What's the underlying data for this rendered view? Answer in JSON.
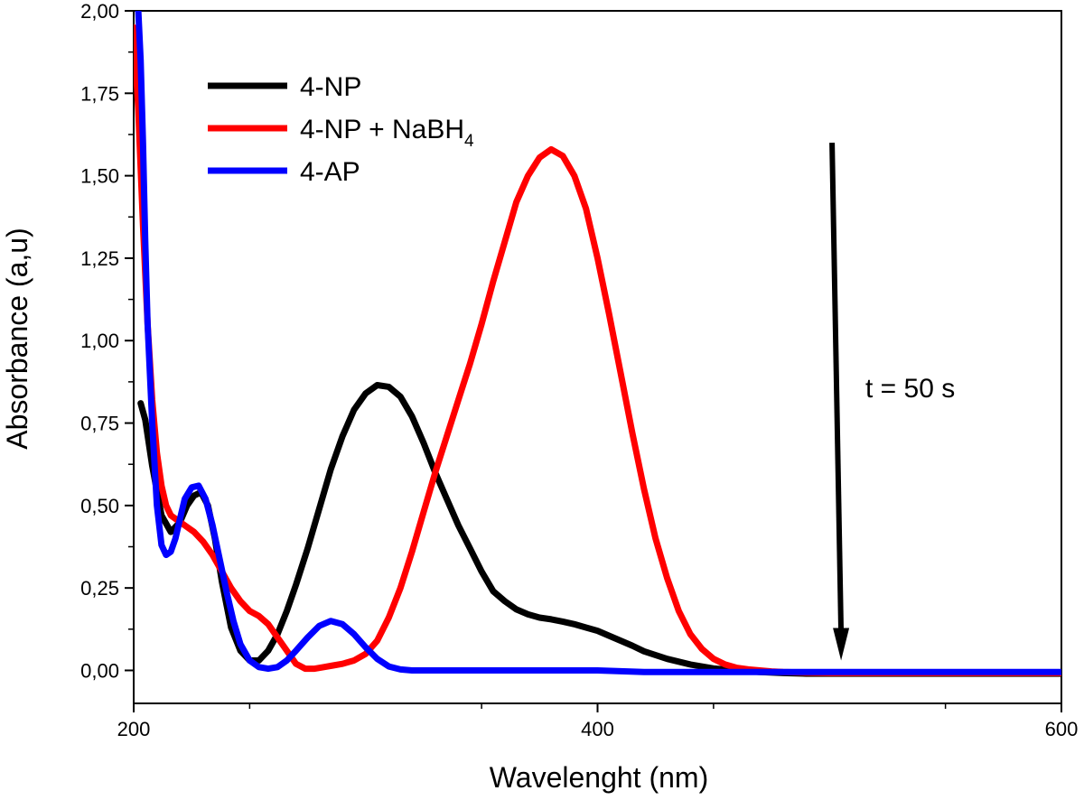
{
  "chart_data": {
    "type": "line",
    "title": "",
    "xlabel": "Wavelenght (nm)",
    "ylabel": "Absorbance (a,u)",
    "xlim": [
      200,
      600
    ],
    "ylim": [
      -0.1,
      2.0
    ],
    "x_ticks": [
      200,
      400,
      600
    ],
    "x_tick_labels": [
      "200",
      "400",
      "600"
    ],
    "y_ticks": [
      0,
      0.25,
      0.5,
      0.75,
      1.0,
      1.25,
      1.5,
      1.75,
      2.0
    ],
    "y_tick_labels": [
      "0,00",
      "0,25",
      "0,50",
      "0,75",
      "1,00",
      "1,25",
      "1,50",
      "1,75",
      "2,00"
    ],
    "grid": false,
    "legend_position": "top-left",
    "series": [
      {
        "name": "4-NP",
        "color": "#000000",
        "x": [
          203,
          205,
          208,
          212,
          216,
          220,
          223,
          226,
          229,
          232,
          235,
          238,
          242,
          246,
          250,
          254,
          258,
          262,
          266,
          270,
          275,
          280,
          285,
          290,
          295,
          300,
          305,
          310,
          315,
          320,
          325,
          330,
          335,
          340,
          345,
          350,
          355,
          360,
          365,
          370,
          375,
          380,
          385,
          390,
          395,
          400,
          405,
          410,
          415,
          420,
          430,
          440,
          450,
          460,
          470,
          480,
          490,
          500,
          520,
          550,
          580,
          600
        ],
        "values": [
          0.81,
          0.76,
          0.62,
          0.47,
          0.42,
          0.45,
          0.5,
          0.53,
          0.54,
          0.5,
          0.4,
          0.27,
          0.13,
          0.06,
          0.03,
          0.03,
          0.06,
          0.11,
          0.18,
          0.26,
          0.37,
          0.49,
          0.61,
          0.71,
          0.79,
          0.84,
          0.865,
          0.86,
          0.83,
          0.77,
          0.69,
          0.6,
          0.52,
          0.44,
          0.37,
          0.3,
          0.24,
          0.21,
          0.185,
          0.17,
          0.16,
          0.155,
          0.148,
          0.14,
          0.13,
          0.12,
          0.105,
          0.09,
          0.075,
          0.058,
          0.035,
          0.018,
          0.006,
          0.0,
          -0.005,
          -0.008,
          -0.01,
          -0.01,
          -0.01,
          -0.01,
          -0.01,
          -0.01
        ]
      },
      {
        "name": "4-NP + NaBH4",
        "color": "#ff0000",
        "x": [
          200,
          202,
          204,
          206,
          208,
          210,
          212,
          214,
          216,
          218,
          222,
          226,
          230,
          234,
          238,
          242,
          246,
          250,
          254,
          258,
          262,
          266,
          270,
          274,
          278,
          282,
          286,
          290,
          295,
          300,
          305,
          310,
          315,
          320,
          325,
          330,
          335,
          340,
          345,
          350,
          355,
          360,
          365,
          370,
          375,
          380,
          385,
          390,
          395,
          400,
          405,
          410,
          415,
          420,
          425,
          430,
          435,
          440,
          445,
          450,
          455,
          460,
          465,
          470,
          475,
          480,
          490,
          500,
          520,
          550,
          580,
          600
        ],
        "values": [
          1.95,
          1.7,
          1.35,
          1.05,
          0.82,
          0.66,
          0.56,
          0.5,
          0.47,
          0.46,
          0.44,
          0.42,
          0.39,
          0.35,
          0.3,
          0.25,
          0.21,
          0.18,
          0.165,
          0.14,
          0.1,
          0.06,
          0.02,
          0.005,
          0.005,
          0.01,
          0.015,
          0.02,
          0.03,
          0.05,
          0.09,
          0.16,
          0.25,
          0.36,
          0.48,
          0.6,
          0.71,
          0.82,
          0.93,
          1.05,
          1.18,
          1.3,
          1.42,
          1.5,
          1.555,
          1.58,
          1.56,
          1.5,
          1.4,
          1.25,
          1.08,
          0.9,
          0.72,
          0.55,
          0.4,
          0.28,
          0.18,
          0.11,
          0.065,
          0.035,
          0.018,
          0.008,
          0.003,
          0.0,
          -0.003,
          -0.005,
          -0.007,
          -0.008,
          -0.008,
          -0.008,
          -0.008,
          -0.008
        ]
      },
      {
        "name": "4-AP",
        "color": "#0000ff",
        "x": [
          202,
          203,
          204,
          205,
          206,
          208,
          210,
          212,
          214,
          216,
          218,
          220,
          222,
          225,
          228,
          231,
          234,
          237,
          240,
          243,
          246,
          250,
          254,
          258,
          262,
          266,
          270,
          275,
          280,
          285,
          290,
          295,
          300,
          305,
          310,
          315,
          320,
          325,
          330,
          340,
          350,
          360,
          370,
          380,
          400,
          420,
          450,
          500,
          550,
          600
        ],
        "values": [
          2.0,
          1.85,
          1.6,
          1.3,
          1.05,
          0.75,
          0.5,
          0.38,
          0.35,
          0.36,
          0.4,
          0.46,
          0.52,
          0.555,
          0.56,
          0.52,
          0.44,
          0.34,
          0.24,
          0.15,
          0.08,
          0.03,
          0.01,
          0.005,
          0.01,
          0.03,
          0.06,
          0.1,
          0.135,
          0.15,
          0.14,
          0.11,
          0.07,
          0.035,
          0.012,
          0.003,
          0.0,
          0.0,
          0.0,
          0.0,
          0.0,
          0.0,
          0.0,
          0.0,
          0.0,
          -0.005,
          -0.005,
          -0.005,
          -0.005,
          -0.005
        ]
      }
    ],
    "legend": [
      {
        "label": "4-NP",
        "color": "#000000"
      },
      {
        "label_main": "4-NP + NaBH",
        "label_sub": "4",
        "color": "#ff0000"
      },
      {
        "label": "4-AP",
        "color": "#0000ff"
      }
    ],
    "annotations": [
      {
        "text": "t = 50 s",
        "arrow_from": [
          505,
          1.6
        ],
        "arrow_to": [
          505,
          0.03
        ]
      }
    ]
  }
}
